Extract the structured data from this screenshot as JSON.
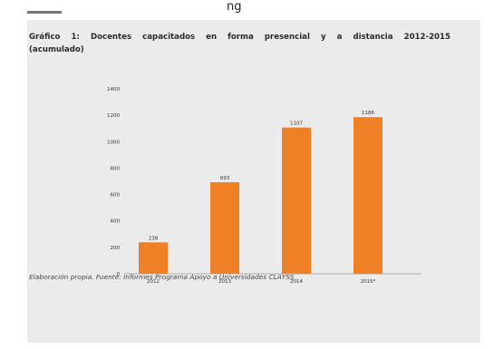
{
  "page": {
    "top_text": "ng",
    "title": "Gráfico 1: Docentes capacitados en forma presencial y a distancia 2012-2015 (acumulado)",
    "source": "Elaboración propia. Fuente: Informes Programa Apoyo a Universidades CLAYSS"
  },
  "colors": {
    "bar": "#f08026",
    "panel": "#ebebeb",
    "axis": "#999999",
    "text": "#333333"
  },
  "chart_data": {
    "type": "bar",
    "title": "Gráfico 1: Docentes capacitados en forma presencial y a distancia 2012-2015 (acumulado)",
    "categories": [
      "2012",
      "2013",
      "2014",
      "2015*"
    ],
    "values": [
      238,
      693,
      1107,
      1186
    ],
    "data_labels": [
      "238",
      "693",
      "1107",
      "1186"
    ],
    "ylim": [
      0,
      1400
    ],
    "yticks": [
      0,
      200,
      400,
      600,
      800,
      1000,
      1200,
      1400
    ],
    "xlabel": "",
    "ylabel": "",
    "grid": false,
    "legend": "none"
  }
}
